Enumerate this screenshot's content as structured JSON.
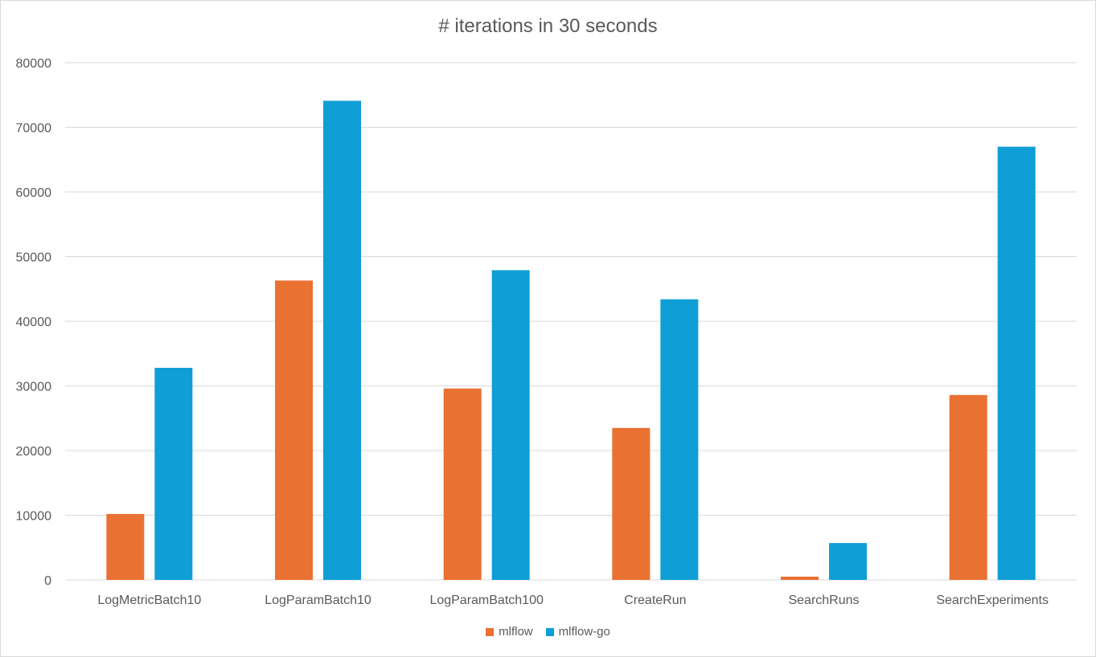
{
  "chart_data": {
    "type": "bar",
    "title": "# iterations in 30 seconds",
    "xlabel": "",
    "ylabel": "",
    "ylim": [
      0,
      80000
    ],
    "yticks": [
      0,
      10000,
      20000,
      30000,
      40000,
      50000,
      60000,
      70000,
      80000
    ],
    "grid": true,
    "legend_position": "bottom",
    "categories": [
      "LogMetricBatch10",
      "LogParamBatch10",
      "LogParamBatch100",
      "CreateRun",
      "SearchRuns",
      "SearchExperiments"
    ],
    "series": [
      {
        "name": "mlflow",
        "color": "#E97132",
        "values": [
          10200,
          46300,
          29600,
          23500,
          500,
          28600
        ]
      },
      {
        "name": "mlflow-go",
        "color": "#0F9ED5",
        "values": [
          32800,
          74100,
          47900,
          43400,
          5700,
          67000
        ]
      }
    ]
  }
}
